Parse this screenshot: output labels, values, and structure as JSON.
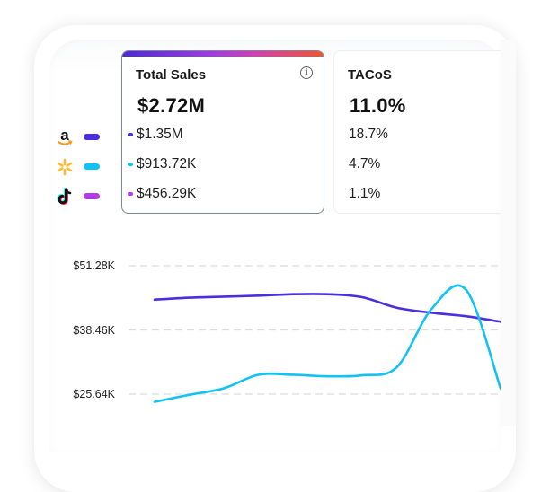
{
  "legend": {
    "items": [
      {
        "name": "Amazon",
        "icon": "amazon-logo-icon",
        "color": "#4a2ee0"
      },
      {
        "name": "Walmart",
        "icon": "walmart-spark-icon",
        "color": "#12c2f5"
      },
      {
        "name": "TikTok",
        "icon": "tiktok-logo-icon",
        "color": "#b13be8"
      }
    ]
  },
  "cards": {
    "total_sales": {
      "title": "Total Sales",
      "value": "$2.72M",
      "rows": [
        "$1.35M",
        "$913.72K",
        "$456.29K"
      ],
      "info_icon": "info-icon"
    },
    "tacos": {
      "title": "TACoS",
      "value": "11.0%",
      "rows": [
        "18.7%",
        "4.7%",
        "1.1%"
      ]
    }
  },
  "colors": {
    "amazon": "#4a2ee0",
    "walmart": "#12c2f5",
    "tiktok": "#b13be8",
    "grid": "#dcdcdc"
  },
  "chart_data": {
    "type": "line",
    "y_tick_labels": [
      "$51.28K",
      "$38.46K",
      "$25.64K"
    ],
    "y_ticks": [
      51.28,
      38.46,
      25.64
    ],
    "ylim_visible": [
      25.64,
      51.28
    ],
    "grid": "dashed-horizontal",
    "x": [
      0,
      1,
      2,
      3,
      4,
      5,
      6,
      7,
      8,
      9,
      10
    ],
    "series": [
      {
        "name": "Amazon",
        "color": "#4a2ee0",
        "values": [
          44.5,
          44.9,
          45.1,
          45.3,
          45.6,
          45.6,
          45.0,
          42.9,
          41.9,
          41.2,
          40.1
        ]
      },
      {
        "name": "Walmart",
        "color": "#12c2f5",
        "values": [
          24.1,
          25.5,
          26.8,
          29.5,
          29.5,
          29.2,
          29.4,
          31.0,
          42.6,
          46.5,
          26.8
        ]
      }
    ]
  }
}
